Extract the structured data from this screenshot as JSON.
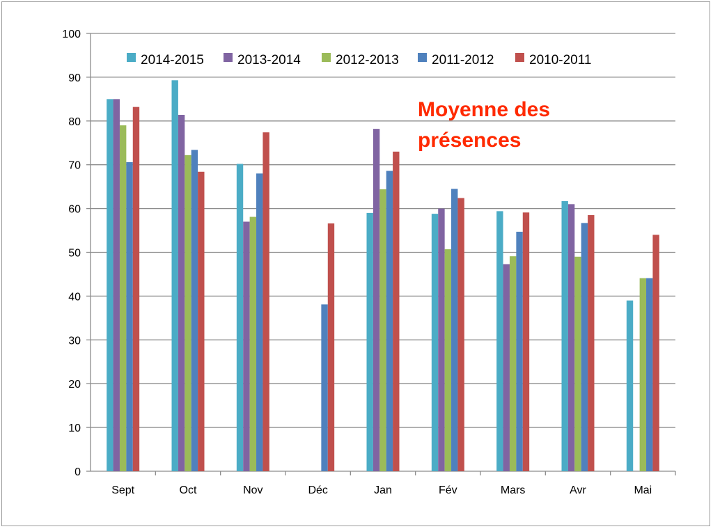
{
  "chart_data": {
    "type": "bar",
    "title_lines": [
      "Moyenne des",
      "présences"
    ],
    "xlabel": "",
    "ylabel": "",
    "ylim": [
      0,
      100
    ],
    "yticks": [
      0,
      10,
      20,
      30,
      40,
      50,
      60,
      70,
      80,
      90,
      100
    ],
    "grid": true,
    "legend_position": "top",
    "categories": [
      "Sept",
      "Oct",
      "Nov",
      "Déc",
      "Jan",
      "Fév",
      "Mars",
      "Avr",
      "Mai"
    ],
    "series": [
      {
        "name": "2014-2015",
        "color": "#4bacc6",
        "values": [
          85,
          89.3,
          70.2,
          null,
          59,
          58.8,
          59.4,
          61.7,
          39
        ]
      },
      {
        "name": "2013-2014",
        "color": "#8064a2",
        "values": [
          85,
          81.4,
          57,
          null,
          78.2,
          60,
          47.3,
          61,
          null
        ]
      },
      {
        "name": "2012-2013",
        "color": "#9bbb59",
        "values": [
          79,
          72.2,
          58.1,
          null,
          64.4,
          50.7,
          49.1,
          49,
          44.1
        ]
      },
      {
        "name": "2011-2012",
        "color": "#4f81bd",
        "values": [
          70.6,
          73.4,
          68,
          38.1,
          68.6,
          64.5,
          54.7,
          56.7,
          44.1
        ]
      },
      {
        "name": "2010-2011",
        "color": "#c0504d",
        "values": [
          83.2,
          68.4,
          77.4,
          56.6,
          73,
          62.4,
          59.1,
          58.5,
          54
        ]
      }
    ]
  }
}
